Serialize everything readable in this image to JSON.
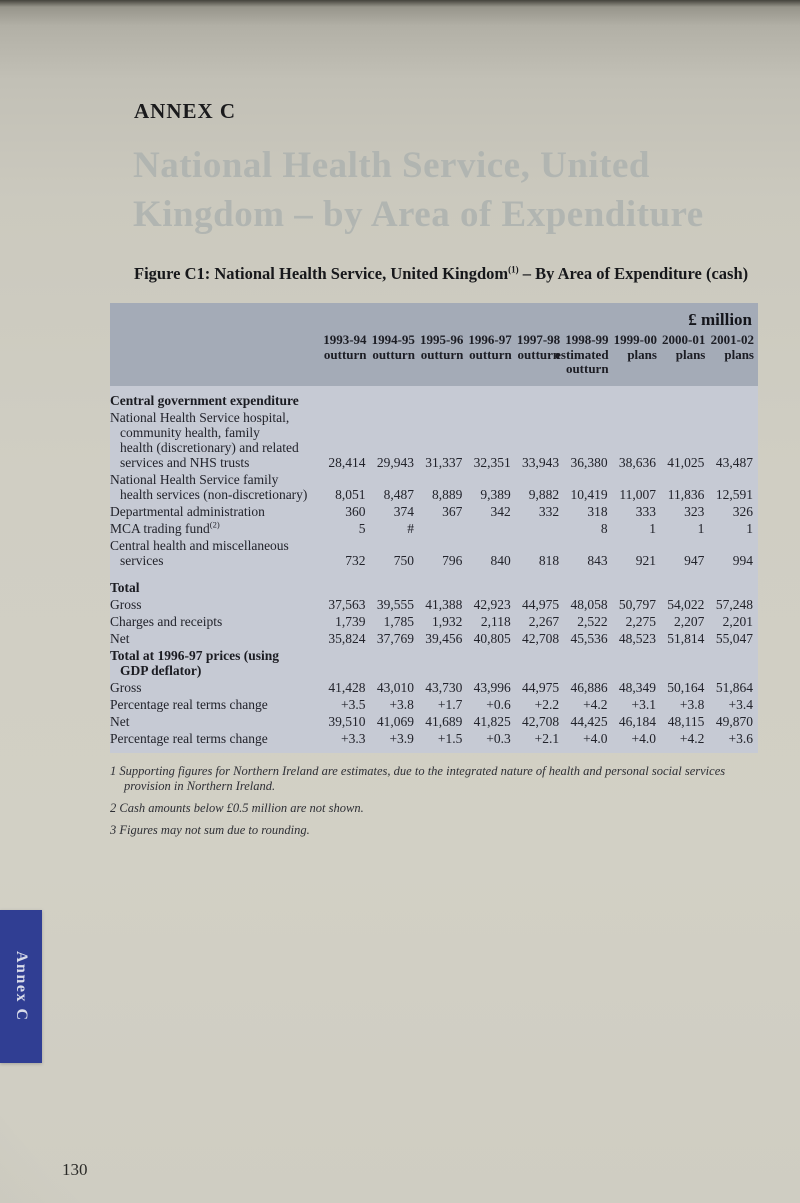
{
  "page": {
    "annex_label": "ANNEX C",
    "ghost_title_line1": "National Health Service, United",
    "ghost_title_line2": "Kingdom – by Area of Expenditure",
    "caption": {
      "pre": "Figure C1: National Health Service, United Kingdom",
      "sup": "(1)",
      "post": " – By Area of Expenditure (cash)"
    },
    "side_tab": "Annex C",
    "page_number": "130"
  },
  "colors": {
    "tab_blue": "#303e93",
    "header_band": "#a4abb7",
    "body_band": "#c6cad4",
    "page_background": "#d0cec3"
  },
  "table": {
    "unit_label": "£ million",
    "columns": [
      {
        "year": "1993-94",
        "sub": "outturn"
      },
      {
        "year": "1994-95",
        "sub": "outturn"
      },
      {
        "year": "1995-96",
        "sub": "outturn"
      },
      {
        "year": "1996-97",
        "sub": "outturn"
      },
      {
        "year": "1997-98",
        "sub": "outturn"
      },
      {
        "year": "1998-99",
        "sub": "estimated outturn"
      },
      {
        "year": "1999-00",
        "sub": "plans"
      },
      {
        "year": "2000-01",
        "sub": "plans"
      },
      {
        "year": "2001-02",
        "sub": "plans"
      }
    ],
    "rows": [
      {
        "section": true,
        "lines": [
          "Central government expenditure"
        ],
        "values": []
      },
      {
        "lines": [
          "National Health Service hospital,",
          "community health, family",
          "health (discretionary) and related",
          "services and NHS trusts"
        ],
        "values": [
          "28,414",
          "29,943",
          "31,337",
          "32,351",
          "33,943",
          "36,380",
          "38,636",
          "41,025",
          "43,487"
        ]
      },
      {
        "lines": [
          "National Health Service family",
          "health services (non-discretionary)"
        ],
        "values": [
          "8,051",
          "8,487",
          "8,889",
          "9,389",
          "9,882",
          "10,419",
          "11,007",
          "11,836",
          "12,591"
        ]
      },
      {
        "lines": [
          "Departmental administration"
        ],
        "values": [
          "360",
          "374",
          "367",
          "342",
          "332",
          "318",
          "333",
          "323",
          "326"
        ]
      },
      {
        "lines": [
          "MCA trading fund"
        ],
        "sup": "(2)",
        "values": [
          "5",
          "#",
          "",
          "",
          "",
          "8",
          "1",
          "1",
          "1"
        ]
      },
      {
        "lines": [
          "Central health and miscellaneous",
          "services"
        ],
        "values": [
          "732",
          "750",
          "796",
          "840",
          "818",
          "843",
          "921",
          "947",
          "994"
        ]
      },
      {
        "section": true,
        "spacer": true,
        "lines": [
          "Total"
        ],
        "values": []
      },
      {
        "lines": [
          "Gross"
        ],
        "values": [
          "37,563",
          "39,555",
          "41,388",
          "42,923",
          "44,975",
          "48,058",
          "50,797",
          "54,022",
          "57,248"
        ]
      },
      {
        "lines": [
          "Charges and receipts"
        ],
        "values": [
          "1,739",
          "1,785",
          "1,932",
          "2,118",
          "2,267",
          "2,522",
          "2,275",
          "2,207",
          "2,201"
        ]
      },
      {
        "lines": [
          "Net"
        ],
        "values": [
          "35,824",
          "37,769",
          "39,456",
          "40,805",
          "42,708",
          "45,536",
          "48,523",
          "51,814",
          "55,047"
        ]
      },
      {
        "section": true,
        "lines": [
          "Total at 1996-97 prices (using",
          "GDP deflator)"
        ],
        "values": []
      },
      {
        "lines": [
          "Gross"
        ],
        "values": [
          "41,428",
          "43,010",
          "43,730",
          "43,996",
          "44,975",
          "46,886",
          "48,349",
          "50,164",
          "51,864"
        ]
      },
      {
        "lines": [
          "Percentage real terms change"
        ],
        "values": [
          "+3.5",
          "+3.8",
          "+1.7",
          "+0.6",
          "+2.2",
          "+4.2",
          "+3.1",
          "+3.8",
          "+3.4"
        ]
      },
      {
        "lines": [
          "Net"
        ],
        "values": [
          "39,510",
          "41,069",
          "41,689",
          "41,825",
          "42,708",
          "44,425",
          "46,184",
          "48,115",
          "49,870"
        ]
      },
      {
        "lines": [
          "Percentage real terms change"
        ],
        "values": [
          "+3.3",
          "+3.9",
          "+1.5",
          "+0.3",
          "+2.1",
          "+4.0",
          "+4.0",
          "+4.2",
          "+3.6"
        ]
      }
    ]
  },
  "footnotes": [
    {
      "num": "1",
      "text": "Supporting figures for Northern Ireland are estimates, due to the integrated nature of health and personal social services provision in Northern Ireland."
    },
    {
      "num": "2",
      "text": "Cash amounts below £0.5 million are not shown."
    },
    {
      "num": "3",
      "text": "Figures may not sum due to rounding."
    }
  ]
}
